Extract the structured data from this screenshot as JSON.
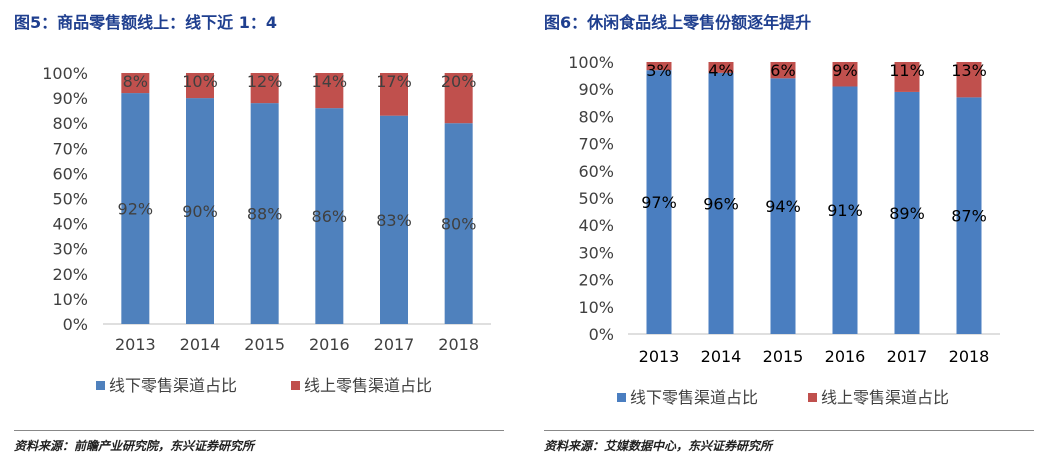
{
  "charts": [
    {
      "heading": "图5：商品零售额线上：线下近 1：4",
      "source": "资料来源：前瞻产业研究院，东兴证券研究所"
    },
    {
      "heading": "图6：休闲食品线上零售份额逐年提升",
      "source": "资料来源：艾媒数据中心，东兴证券研究所"
    }
  ],
  "chart_data": [
    {
      "type": "bar",
      "stacked": true,
      "categories": [
        "2013",
        "2014",
        "2015",
        "2016",
        "2017",
        "2018"
      ],
      "series": [
        {
          "name": "线下零售渠道占比",
          "values": [
            92,
            90,
            88,
            86,
            83,
            80
          ],
          "labels": [
            "92%",
            "90%",
            "88%",
            "86%",
            "83%",
            "80%"
          ],
          "color": "#4f81bd"
        },
        {
          "name": "线上零售渠道占比",
          "values": [
            8,
            10,
            12,
            14,
            17,
            20
          ],
          "labels": [
            "8%",
            "10%",
            "12%",
            "14%",
            "17%",
            "20%"
          ],
          "color": "#c0504d"
        }
      ],
      "ylim": [
        0,
        100
      ],
      "yticks": [
        "0%",
        "10%",
        "20%",
        "30%",
        "40%",
        "50%",
        "60%",
        "70%",
        "80%",
        "90%",
        "100%"
      ],
      "grid": false,
      "legend": "bottom",
      "title": "",
      "xlabel": "",
      "ylabel": ""
    },
    {
      "type": "bar",
      "stacked": true,
      "categories": [
        "2013",
        "2014",
        "2015",
        "2016",
        "2017",
        "2018"
      ],
      "series": [
        {
          "name": "线下零售渠道占比",
          "values": [
            97,
            96,
            94,
            91,
            89,
            87
          ],
          "labels": [
            "97%",
            "96%",
            "94%",
            "91%",
            "89%",
            "87%"
          ],
          "color": "#4a7ec0"
        },
        {
          "name": "线上零售渠道占比",
          "values": [
            3,
            4,
            6,
            9,
            11,
            13
          ],
          "labels": [
            "3%",
            "4%",
            "6%",
            "9%",
            "11%",
            "13%"
          ],
          "color": "#c0504d"
        }
      ],
      "ylim": [
        0,
        100
      ],
      "yticks": [
        "0%",
        "10%",
        "20%",
        "30%",
        "40%",
        "50%",
        "60%",
        "70%",
        "80%",
        "90%",
        "100%"
      ],
      "grid": false,
      "legend": "bottom",
      "title": "",
      "xlabel": "",
      "ylabel": ""
    }
  ]
}
